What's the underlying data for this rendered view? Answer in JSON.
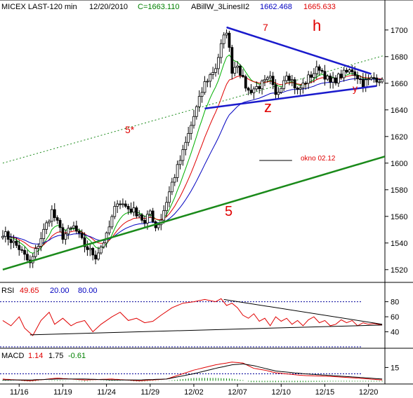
{
  "header": {
    "instrument": "MICEX LAST-120 min",
    "date": "12/20/2010",
    "close": "C=1663.110",
    "indicator": "ABillW_3LinesII2",
    "value_1": "1662.468",
    "value_2": "1665.633"
  },
  "colors": {
    "candle": "#000000",
    "red_ma": "#e00000",
    "green_ma": "#00b000",
    "blue_ma": "#0000c0",
    "channel_5": "#1a8a1a",
    "triangle": "#1a1acc",
    "annotation": "#e00000",
    "guide": "#00009a"
  },
  "chart_data": [
    {
      "type": "candlestick",
      "panel": "price",
      "ylim": [
        1512,
        1712
      ],
      "yticks": [
        1520,
        1540,
        1560,
        1580,
        1600,
        1620,
        1640,
        1660,
        1680,
        1700
      ],
      "x_ticks": [
        "11/16",
        "11/19",
        "11/24",
        "11/29",
        "12/02",
        "12/07",
        "12/10",
        "12/15",
        "12/20"
      ],
      "x_tick_index": [
        6,
        22,
        38,
        54,
        70,
        86,
        102,
        118,
        134
      ],
      "bars_count": 140,
      "close_path": [
        [
          0,
          1548
        ],
        [
          6,
          1536
        ],
        [
          10,
          1524
        ],
        [
          14,
          1544
        ],
        [
          18,
          1564
        ],
        [
          22,
          1545
        ],
        [
          26,
          1552
        ],
        [
          30,
          1538
        ],
        [
          34,
          1530
        ],
        [
          38,
          1545
        ],
        [
          42,
          1572
        ],
        [
          46,
          1566
        ],
        [
          50,
          1562
        ],
        [
          52,
          1554
        ],
        [
          54,
          1564
        ],
        [
          56,
          1552
        ],
        [
          58,
          1558
        ],
        [
          62,
          1585
        ],
        [
          66,
          1608
        ],
        [
          70,
          1635
        ],
        [
          74,
          1660
        ],
        [
          78,
          1672
        ],
        [
          80,
          1688
        ],
        [
          82,
          1700
        ],
        [
          84,
          1670
        ],
        [
          86,
          1675
        ],
        [
          88,
          1662
        ],
        [
          90,
          1654
        ],
        [
          94,
          1658
        ],
        [
          98,
          1663
        ],
        [
          100,
          1650
        ],
        [
          104,
          1668
        ],
        [
          106,
          1662
        ],
        [
          108,
          1654
        ],
        [
          112,
          1664
        ],
        [
          116,
          1672
        ],
        [
          120,
          1660
        ],
        [
          124,
          1666
        ],
        [
          128,
          1670
        ],
        [
          132,
          1660
        ],
        [
          136,
          1664
        ],
        [
          139,
          1663
        ]
      ],
      "annotations": {
        "five_star": "5*",
        "five": "5",
        "seven": "7",
        "h": "h",
        "z": "z",
        "y": "y",
        "okno": "okno 02.12"
      },
      "lines": {
        "channel_5": {
          "from": [
            0,
            1520
          ],
          "to": [
            140,
            1605
          ]
        },
        "channel_5_star": {
          "from": [
            0,
            1600
          ],
          "to": [
            140,
            1681
          ]
        },
        "triangle_upper_7": {
          "from": [
            82,
            1702
          ],
          "to": [
            135,
            1667
          ]
        },
        "triangle_lower": {
          "from": [
            74,
            1641
          ],
          "to": [
            137,
            1658
          ]
        },
        "okno_marker": {
          "from": [
            94,
            1602
          ],
          "to": [
            106,
            1602
          ]
        }
      },
      "moving_averages": [
        "red",
        "green",
        "blue"
      ]
    },
    {
      "type": "line",
      "panel": "rsi",
      "label": "RSI",
      "value": "49.65",
      "level_low": "20.00",
      "level_high": "80.00",
      "ylim": [
        20,
        88
      ],
      "yticks": [
        40,
        60,
        80
      ],
      "levels": [
        20,
        80
      ],
      "series_points": [
        [
          0,
          55
        ],
        [
          3,
          48
        ],
        [
          6,
          60
        ],
        [
          8,
          45
        ],
        [
          11,
          35
        ],
        [
          14,
          55
        ],
        [
          17,
          66
        ],
        [
          19,
          50
        ],
        [
          22,
          58
        ],
        [
          25,
          48
        ],
        [
          27,
          52
        ],
        [
          30,
          55
        ],
        [
          33,
          40
        ],
        [
          36,
          50
        ],
        [
          40,
          60
        ],
        [
          43,
          66
        ],
        [
          46,
          55
        ],
        [
          49,
          58
        ],
        [
          52,
          52
        ],
        [
          55,
          54
        ],
        [
          58,
          62
        ],
        [
          62,
          72
        ],
        [
          66,
          78
        ],
        [
          70,
          80
        ],
        [
          74,
          83
        ],
        [
          78,
          80
        ],
        [
          80,
          84
        ],
        [
          82,
          75
        ],
        [
          84,
          78
        ],
        [
          86,
          72
        ],
        [
          88,
          62
        ],
        [
          90,
          58
        ],
        [
          92,
          64
        ],
        [
          94,
          54
        ],
        [
          96,
          58
        ],
        [
          98,
          48
        ],
        [
          100,
          60
        ],
        [
          102,
          54
        ],
        [
          104,
          58
        ],
        [
          106,
          50
        ],
        [
          108,
          55
        ],
        [
          110,
          48
        ],
        [
          112,
          56
        ],
        [
          114,
          60
        ],
        [
          116,
          52
        ],
        [
          118,
          55
        ],
        [
          120,
          48
        ],
        [
          122,
          50
        ],
        [
          124,
          56
        ],
        [
          126,
          52
        ],
        [
          128,
          55
        ],
        [
          130,
          48
        ],
        [
          132,
          52
        ],
        [
          134,
          50
        ],
        [
          136,
          51
        ],
        [
          139,
          49
        ]
      ],
      "trend_upper": {
        "from": [
          81,
          83
        ],
        "to": [
          139,
          50
        ]
      },
      "trend_lower": {
        "from": [
          10,
          36
        ],
        "to": [
          139,
          49
        ]
      }
    },
    {
      "type": "line",
      "panel": "macd",
      "label": "MACD",
      "value_1": "1.14",
      "value_2": "1.75",
      "value_3": "-0.61",
      "ylim": [
        -2,
        24
      ],
      "yticks": [
        15
      ],
      "macd_points": [
        [
          0,
          2
        ],
        [
          10,
          0
        ],
        [
          20,
          3
        ],
        [
          30,
          1
        ],
        [
          40,
          2
        ],
        [
          50,
          0
        ],
        [
          60,
          2
        ],
        [
          70,
          12
        ],
        [
          78,
          18
        ],
        [
          84,
          21
        ],
        [
          88,
          20
        ],
        [
          92,
          14
        ],
        [
          96,
          12
        ],
        [
          100,
          9
        ],
        [
          110,
          6
        ],
        [
          120,
          5
        ],
        [
          130,
          3
        ],
        [
          139,
          1
        ]
      ],
      "signal_points": [
        [
          0,
          1
        ],
        [
          10,
          1
        ],
        [
          20,
          2
        ],
        [
          30,
          2
        ],
        [
          40,
          1
        ],
        [
          50,
          1
        ],
        [
          60,
          2
        ],
        [
          70,
          8
        ],
        [
          78,
          14
        ],
        [
          84,
          18
        ],
        [
          88,
          19
        ],
        [
          92,
          17
        ],
        [
          96,
          14
        ],
        [
          100,
          11
        ],
        [
          110,
          8
        ],
        [
          120,
          6
        ],
        [
          130,
          4
        ],
        [
          139,
          2
        ]
      ]
    }
  ]
}
